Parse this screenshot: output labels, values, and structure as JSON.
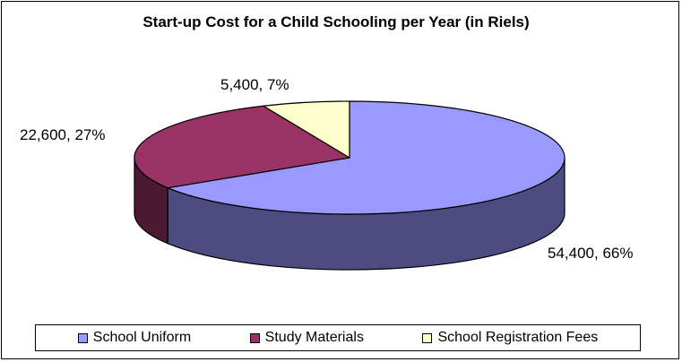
{
  "chart_data": {
    "type": "pie",
    "style": "3d",
    "title": "Start-up Cost for a Child Schooling per Year (in Riels)",
    "categories": [
      "School Uniform",
      "Study Materials",
      "School Registration Fees"
    ],
    "values": [
      54400,
      22600,
      5400
    ],
    "percentages": [
      66,
      27,
      7
    ],
    "data_labels": [
      "54,400, 66%",
      "22,600, 27%",
      "5,400, 7%"
    ],
    "colors": [
      "#9999FF",
      "#993366",
      "#FFFFCC"
    ],
    "side_colors": [
      "#4C4C80",
      "#4C1933",
      "#80806A"
    ],
    "legend_position": "bottom"
  }
}
